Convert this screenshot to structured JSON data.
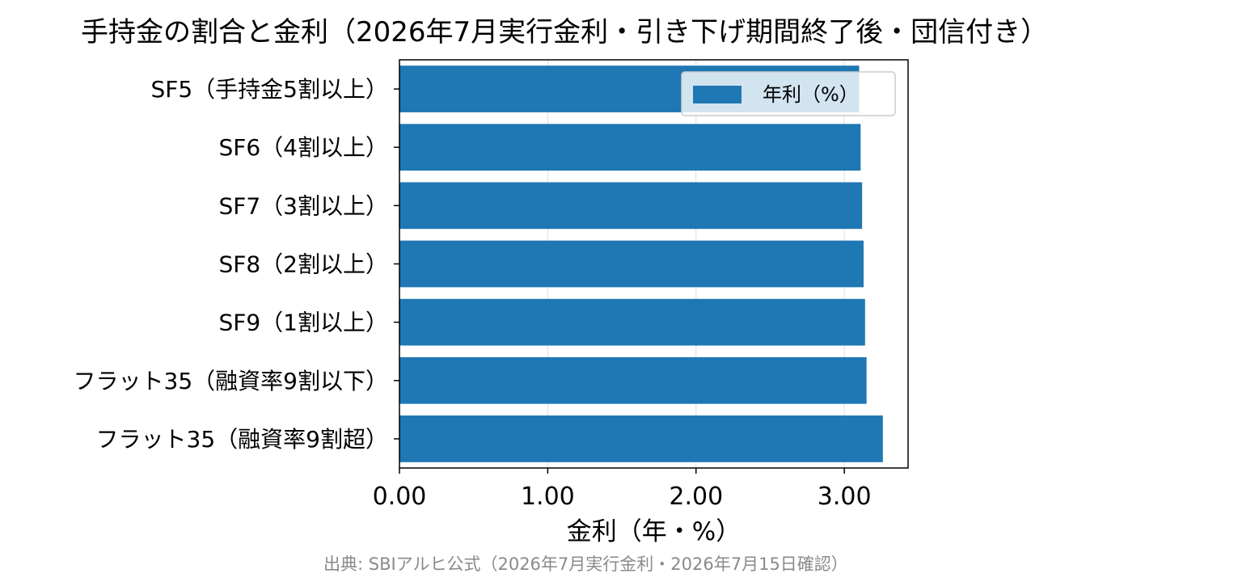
{
  "chart_data": {
    "type": "bar",
    "orientation": "horizontal",
    "title": "手持金の割合と金利（2026年7月実行金利・引き下げ期間終了後・団信付き）",
    "categories": [
      "SF5（手持金5割以上）",
      "SF6（4割以上）",
      "SF7（3割以上）",
      "SF8（2割以上）",
      "SF9（1割以上）",
      "フラット35（融資率9割以下）",
      "フラット35（融資率9割超）"
    ],
    "series": [
      {
        "name": "年利（%）",
        "values": [
          3.1,
          3.11,
          3.12,
          3.13,
          3.14,
          3.15,
          3.26
        ]
      }
    ],
    "xlabel": "金利（年・%）",
    "ylabel": "",
    "xlim": [
      0,
      3.43
    ],
    "xticks": [
      0,
      1,
      2,
      3
    ],
    "xtick_labels": [
      "0.00",
      "1.00",
      "2.00",
      "3.00"
    ],
    "grid": "vertical",
    "legend_position": "upper-right",
    "colors": {
      "bar": "#1f77b4",
      "grid": "#dddddd",
      "axis": "#000000"
    }
  },
  "source_note": "出典: SBIアルヒ公式（2026年7月実行金利・2026年7月15日確認）"
}
